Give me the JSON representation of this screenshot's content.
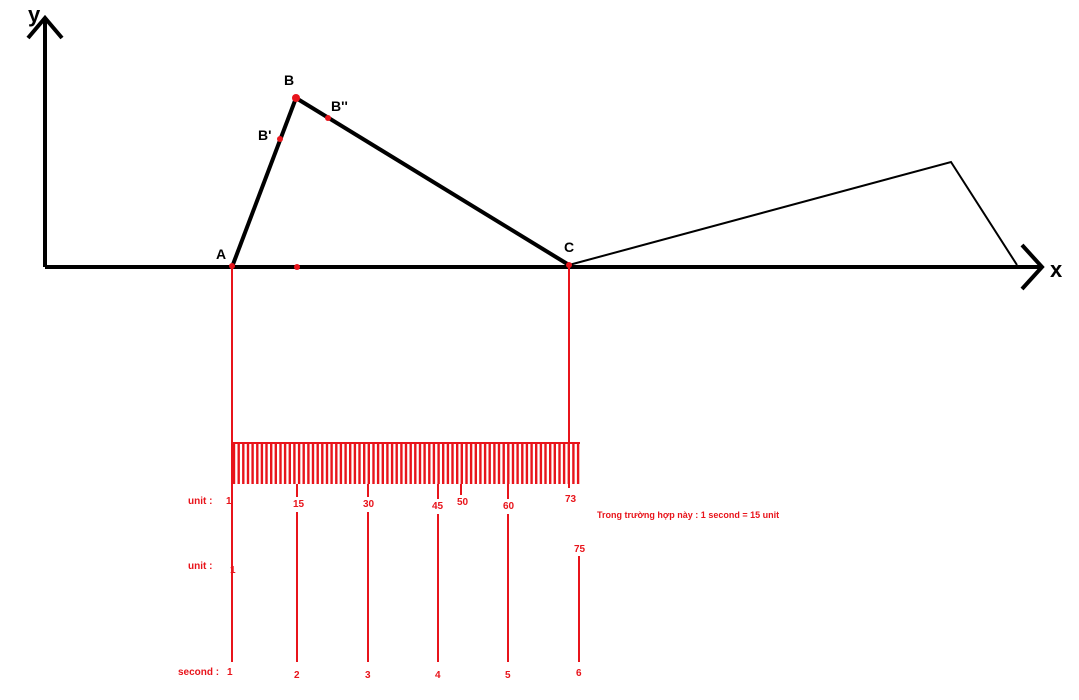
{
  "colors": {
    "axis": "#000000",
    "accent": "#e8141b"
  },
  "axes": {
    "x_label": "x",
    "y_label": "y"
  },
  "points": {
    "A": "A",
    "B": "B",
    "B_prime": "B'",
    "B_double_prime": "B''",
    "C": "C"
  },
  "ruler": {
    "row_unit_label": "unit :",
    "row_unit2_label": "unit :",
    "row_second_label": "second :",
    "unit_ticks": [
      "1",
      "15",
      "30",
      "45",
      "50",
      "60",
      "73"
    ],
    "unit2_ticks": [
      "1",
      "75"
    ],
    "second_ticks": [
      "1",
      "2",
      "3",
      "4",
      "5",
      "6"
    ],
    "note": "Trong trường hợp này : 1 second = 15 unit"
  }
}
